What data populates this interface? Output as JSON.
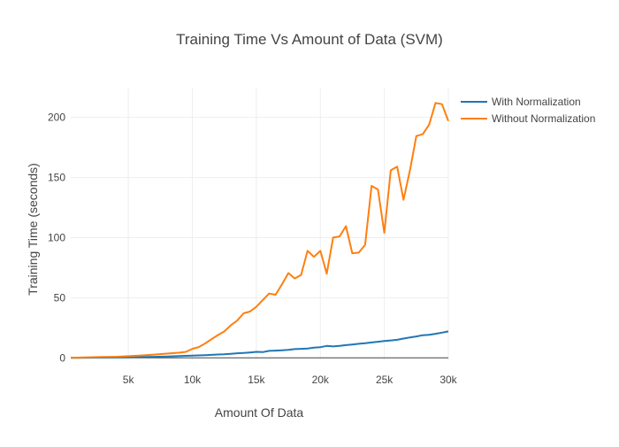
{
  "chart_data": {
    "type": "line",
    "title": "Training Time Vs Amount of Data (SVM)",
    "xlabel": "Amount Of Data",
    "ylabel": "Training Time (seconds)",
    "xlim": [
      500,
      30000
    ],
    "ylim": [
      -2,
      224
    ],
    "x_ticks": [
      {
        "value": 5000,
        "label": "5k"
      },
      {
        "value": 10000,
        "label": "10k"
      },
      {
        "value": 15000,
        "label": "15k"
      },
      {
        "value": 20000,
        "label": "20k"
      },
      {
        "value": 25000,
        "label": "25k"
      },
      {
        "value": 30000,
        "label": "30k"
      }
    ],
    "y_ticks": [
      {
        "value": 0,
        "label": "0"
      },
      {
        "value": 50,
        "label": "50"
      },
      {
        "value": 100,
        "label": "100"
      },
      {
        "value": 150,
        "label": "150"
      },
      {
        "value": 200,
        "label": "200"
      }
    ],
    "grid": true,
    "legend_position": "top-right",
    "series": [
      {
        "name": "With Normalization",
        "color": "#1f77b4",
        "points": [
          [
            500,
            0.0
          ],
          [
            1000,
            0.05
          ],
          [
            2000,
            0.1
          ],
          [
            3000,
            0.2
          ],
          [
            4000,
            0.3
          ],
          [
            5000,
            0.5
          ],
          [
            6000,
            0.7
          ],
          [
            7000,
            0.9
          ],
          [
            8000,
            1.2
          ],
          [
            9000,
            1.5
          ],
          [
            10000,
            1.9
          ],
          [
            11000,
            2.3
          ],
          [
            12000,
            2.8
          ],
          [
            12500,
            3.0
          ],
          [
            13000,
            3.4
          ],
          [
            13500,
            3.8
          ],
          [
            14000,
            4.0
          ],
          [
            14500,
            4.5
          ],
          [
            15000,
            5.0
          ],
          [
            15500,
            4.8
          ],
          [
            16000,
            5.8
          ],
          [
            16500,
            6.0
          ],
          [
            17000,
            6.3
          ],
          [
            17500,
            6.7
          ],
          [
            18000,
            7.3
          ],
          [
            18500,
            7.5
          ],
          [
            19000,
            7.8
          ],
          [
            19500,
            8.5
          ],
          [
            20000,
            8.9
          ],
          [
            20500,
            9.9
          ],
          [
            21000,
            9.5
          ],
          [
            21500,
            10.0
          ],
          [
            22000,
            10.6
          ],
          [
            22500,
            11.1
          ],
          [
            23000,
            11.7
          ],
          [
            23500,
            12.2
          ],
          [
            24000,
            12.8
          ],
          [
            24500,
            13.4
          ],
          [
            25000,
            14.0
          ],
          [
            25500,
            14.5
          ],
          [
            26000,
            15.0
          ],
          [
            26500,
            16.0
          ],
          [
            27000,
            17.0
          ],
          [
            27500,
            17.8
          ],
          [
            28000,
            18.8
          ],
          [
            28500,
            19.2
          ],
          [
            29000,
            20.0
          ],
          [
            29500,
            21.0
          ],
          [
            30000,
            22.0
          ]
        ]
      },
      {
        "name": "Without Normalization",
        "color": "#ff7f0e",
        "points": [
          [
            500,
            0.0
          ],
          [
            1000,
            0.2
          ],
          [
            2000,
            0.5
          ],
          [
            3000,
            0.7
          ],
          [
            4000,
            0.9
          ],
          [
            5000,
            1.4
          ],
          [
            6000,
            2.0
          ],
          [
            7000,
            2.7
          ],
          [
            8000,
            3.5
          ],
          [
            9000,
            4.3
          ],
          [
            9500,
            5.0
          ],
          [
            10000,
            7.5
          ],
          [
            10500,
            9.0
          ],
          [
            11000,
            12.0
          ],
          [
            11500,
            15.5
          ],
          [
            12000,
            19.0
          ],
          [
            12500,
            22.0
          ],
          [
            13000,
            27.0
          ],
          [
            13500,
            31.0
          ],
          [
            14000,
            37.0
          ],
          [
            14500,
            38.5
          ],
          [
            15000,
            42.5
          ],
          [
            15500,
            48.0
          ],
          [
            16000,
            53.5
          ],
          [
            16500,
            52.5
          ],
          [
            17000,
            61.0
          ],
          [
            17500,
            70.5
          ],
          [
            18000,
            66.0
          ],
          [
            18500,
            69.0
          ],
          [
            19000,
            89.0
          ],
          [
            19500,
            84.0
          ],
          [
            20000,
            89.0
          ],
          [
            20500,
            70.0
          ],
          [
            21000,
            100.0
          ],
          [
            21500,
            101.0
          ],
          [
            22000,
            109.5
          ],
          [
            22500,
            87.0
          ],
          [
            23000,
            87.5
          ],
          [
            23500,
            94.0
          ],
          [
            24000,
            143.0
          ],
          [
            24500,
            140.0
          ],
          [
            25000,
            104.0
          ],
          [
            25500,
            156.0
          ],
          [
            26000,
            159.0
          ],
          [
            26500,
            131.5
          ],
          [
            27000,
            156.0
          ],
          [
            27500,
            184.5
          ],
          [
            28000,
            186.0
          ],
          [
            28500,
            194.0
          ],
          [
            29000,
            212.0
          ],
          [
            29500,
            211.0
          ],
          [
            30000,
            197.0
          ]
        ]
      }
    ]
  }
}
